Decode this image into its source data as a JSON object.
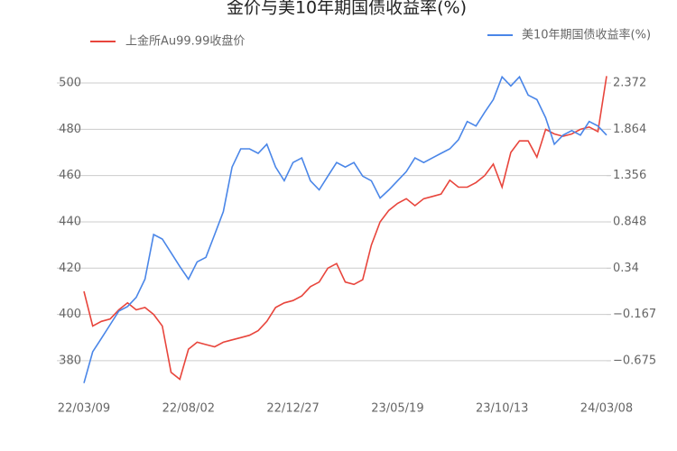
{
  "chart_data": {
    "type": "line",
    "title": "金价与美10年期国债收益率(%)",
    "categories": [
      "22/03/09",
      null,
      null,
      null,
      null,
      null,
      null,
      null,
      null,
      null,
      null,
      null,
      "22/08/02",
      null,
      null,
      null,
      null,
      null,
      null,
      null,
      null,
      null,
      null,
      null,
      "22/12/27",
      null,
      null,
      null,
      null,
      null,
      null,
      null,
      null,
      null,
      null,
      null,
      "23/05/19",
      null,
      null,
      null,
      null,
      null,
      null,
      null,
      null,
      null,
      null,
      null,
      "23/10/13",
      null,
      null,
      null,
      null,
      null,
      null,
      null,
      null,
      null,
      null,
      null,
      "24/03/08"
    ],
    "series": [
      {
        "name": "上金所Au99.99收盘价",
        "color": "#e8453c",
        "axis": "y",
        "values": [
          410,
          395,
          397,
          398,
          402,
          405,
          402,
          403,
          400,
          395,
          375,
          372,
          385,
          388,
          387,
          386,
          388,
          389,
          390,
          391,
          393,
          397,
          403,
          405,
          406,
          408,
          412,
          414,
          420,
          422,
          414,
          413,
          415,
          430,
          440,
          445,
          448,
          450,
          447,
          450,
          451,
          452,
          458,
          455,
          455,
          457,
          460,
          465,
          455,
          470,
          475,
          475,
          468,
          480,
          478,
          477,
          478,
          480,
          481,
          479,
          503
        ]
      },
      {
        "name": "美10年期国债收益率(%)",
        "color": "#4a86e8",
        "axis": "y2",
        "values": [
          -0.92,
          -0.576,
          -0.43,
          -0.28,
          -0.13,
          -0.08,
          0.02,
          0.22,
          0.71,
          0.66,
          0.51,
          0.36,
          0.22,
          0.41,
          0.46,
          0.71,
          0.96,
          1.45,
          1.65,
          1.65,
          1.6,
          1.7,
          1.45,
          1.3,
          1.5,
          1.55,
          1.3,
          1.2,
          1.35,
          1.5,
          1.45,
          1.5,
          1.35,
          1.3,
          1.11,
          1.2,
          1.3,
          1.4,
          1.55,
          1.5,
          1.55,
          1.6,
          1.65,
          1.75,
          1.95,
          1.9,
          2.05,
          2.19,
          2.44,
          2.34,
          2.44,
          2.24,
          2.19,
          1.99,
          1.7,
          1.8,
          1.85,
          1.8,
          1.95,
          1.9,
          1.8
        ]
      }
    ],
    "ylim": [
      367.5,
      504.7
    ],
    "yticks": [
      380,
      400,
      420,
      440,
      460,
      480,
      500
    ],
    "y2lim": [
      -0.992,
      2.491
    ],
    "y2ticks": [
      {
        "value": -0.675,
        "label": "−0.675"
      },
      {
        "value": -0.167,
        "label": "−0.167"
      },
      0.34,
      0.848,
      1.356,
      1.864,
      2.372
    ],
    "grid": true
  }
}
